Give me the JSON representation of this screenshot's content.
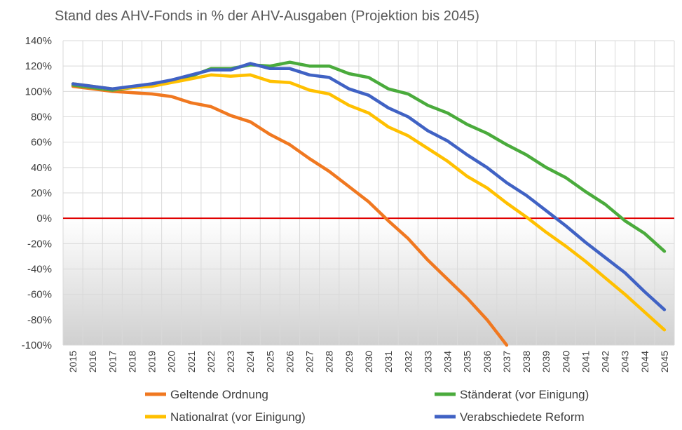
{
  "chart_data": {
    "type": "line",
    "title": "Stand des AHV-Fonds in % der AHV-Ausgaben (Projektion bis 2045)",
    "xlabel": "",
    "ylabel": "",
    "ylim": [
      -100,
      140
    ],
    "y_tick_values": [
      140,
      120,
      100,
      80,
      60,
      40,
      20,
      0,
      -20,
      -40,
      -60,
      -80,
      -100
    ],
    "y_tick_labels": [
      "140%",
      "120%",
      "100%",
      "80%",
      "60%",
      "40%",
      "20%",
      "0%",
      "-20%",
      "-40%",
      "-60%",
      "-80%",
      "-100%"
    ],
    "categories": [
      "2015",
      "2016",
      "2017",
      "2018",
      "2019",
      "2020",
      "2021",
      "2022",
      "2023",
      "2024",
      "2025",
      "2026",
      "2027",
      "2028",
      "2029",
      "2030",
      "2031",
      "2032",
      "2033",
      "2034",
      "2035",
      "2036",
      "2037",
      "2038",
      "2039",
      "2040",
      "2041",
      "2042",
      "2043",
      "2044",
      "2045"
    ],
    "zero_line_color": "#e00000",
    "legend_position": "bottom",
    "series": [
      {
        "name": "Geltende Ordnung",
        "color": "#f07820",
        "values": [
          104,
          102,
          100,
          99,
          98,
          96,
          91,
          88,
          81,
          76,
          66,
          58,
          47,
          37,
          25,
          13,
          -2,
          -16,
          -33,
          -48,
          -63,
          -80,
          -100,
          null,
          null,
          null,
          null,
          null,
          null,
          null,
          null
        ]
      },
      {
        "name": "Ständerat (vor Einigung)",
        "color": "#4aab3c",
        "values": [
          105,
          103,
          101,
          103,
          105,
          108,
          112,
          118,
          118,
          121,
          120,
          123,
          120,
          120,
          114,
          111,
          102,
          98,
          89,
          83,
          74,
          67,
          58,
          50,
          40,
          32,
          21,
          11,
          -2,
          -12,
          -26
        ]
      },
      {
        "name": "Nationalrat (vor Einigung)",
        "color": "#ffc000",
        "values": [
          106,
          104,
          102,
          103,
          104,
          107,
          110,
          113,
          112,
          113,
          108,
          107,
          101,
          98,
          89,
          83,
          72,
          65,
          55,
          45,
          33,
          24,
          12,
          1,
          -11,
          -22,
          -34,
          -47,
          -60,
          -74,
          -88
        ]
      },
      {
        "name": "Verabschiedete Reform",
        "color": "#4062c4",
        "values": [
          106,
          104,
          102,
          104,
          106,
          109,
          113,
          117,
          117,
          122,
          118,
          118,
          113,
          111,
          102,
          97,
          87,
          80,
          69,
          61,
          50,
          40,
          28,
          18,
          6,
          -6,
          -19,
          -31,
          -43,
          -58,
          -72
        ]
      }
    ]
  }
}
